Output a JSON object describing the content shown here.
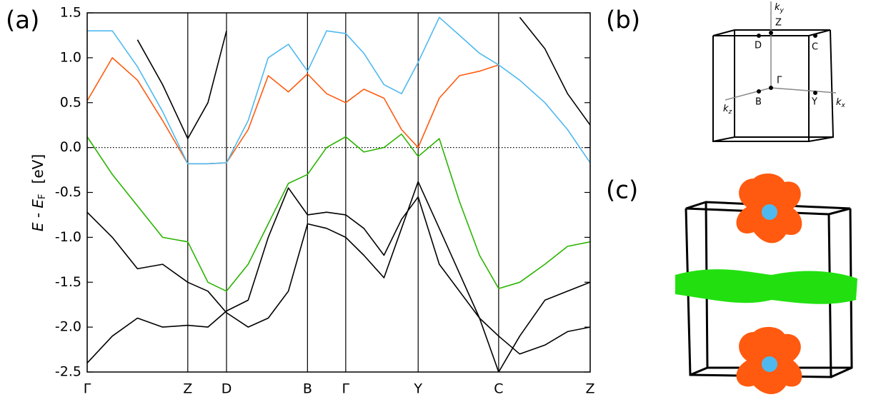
{
  "chart_data": {
    "type": "line",
    "x": [
      0,
      0.05,
      0.1,
      0.15,
      0.2,
      0.24,
      0.277,
      0.32,
      0.36,
      0.4,
      0.438,
      0.476,
      0.514,
      0.55,
      0.59,
      0.625,
      0.658,
      0.7,
      0.74,
      0.78,
      0.818,
      0.86,
      0.91,
      0.955,
      1.0
    ],
    "xlim": [
      0,
      1
    ],
    "xticks": [
      {
        "value": 0,
        "label": "Γ"
      },
      {
        "value": 0.2,
        "label": "Z"
      },
      {
        "value": 0.277,
        "label": "D"
      },
      {
        "value": 0.438,
        "label": "B"
      },
      {
        "value": 0.514,
        "label": "Γ"
      },
      {
        "value": 0.658,
        "label": "Y"
      },
      {
        "value": 0.818,
        "label": "C"
      },
      {
        "value": 1.0,
        "label": "Z"
      }
    ],
    "ylim": [
      -2.5,
      1.5
    ],
    "yticks": [
      1.5,
      {
        "value": 1,
        "label": "1.0"
      },
      0.5,
      {
        "value": 0,
        "label": "0.0"
      },
      -0.5,
      {
        "value": -1,
        "label": "-1.0"
      },
      -1.5,
      {
        "value": -2,
        "label": "-2.0"
      },
      -2.5
    ],
    "ylabel_parts": [
      "E",
      " - ",
      "E",
      "F",
      "[eV]"
    ],
    "hline": 0,
    "series": [
      {
        "color": "#000000",
        "values": [
          -0.72,
          -1.0,
          -1.35,
          -1.3,
          -1.5,
          -1.6,
          -1.84,
          -2.0,
          -1.9,
          -1.6,
          -0.85,
          -0.9,
          -1.0,
          -1.2,
          -1.45,
          -0.9,
          -0.38,
          -0.9,
          -1.4,
          -1.9,
          -2.5,
          -2.1,
          -1.7,
          -1.6,
          -1.5
        ]
      },
      {
        "color": "#000000",
        "values": [
          -2.4,
          -2.1,
          -1.9,
          -2.0,
          -1.98,
          -2.0,
          -1.82,
          -1.7,
          -1.0,
          -0.45,
          -0.75,
          -0.72,
          -0.75,
          -0.9,
          -1.2,
          -0.8,
          -0.55,
          -1.3,
          -1.6,
          -1.9,
          -2.1,
          -2.3,
          -2.2,
          -2.05,
          -2.0
        ]
      },
      {
        "color": "#000000",
        "values": [
          null,
          null,
          1.2,
          0.7,
          0.1,
          0.5,
          1.3,
          null,
          null,
          null,
          null,
          null,
          null,
          null,
          null,
          null,
          null,
          null,
          null,
          null,
          null,
          null,
          null,
          null,
          null
        ]
      },
      {
        "color": "#000000",
        "values": [
          null,
          null,
          null,
          null,
          null,
          null,
          null,
          null,
          null,
          null,
          null,
          null,
          null,
          null,
          null,
          null,
          null,
          null,
          null,
          null,
          null,
          1.45,
          1.1,
          0.6,
          0.25
        ]
      },
      {
        "color": "#2ab400",
        "values": [
          0.12,
          -0.3,
          -0.65,
          -1.0,
          -1.05,
          -1.5,
          -1.6,
          -1.3,
          -0.85,
          -0.4,
          -0.3,
          0.0,
          0.12,
          -0.05,
          0.0,
          0.15,
          -0.1,
          0.1,
          -0.6,
          -1.2,
          -1.57,
          -1.5,
          -1.3,
          -1.1,
          -1.05
        ]
      },
      {
        "color": "#ff5a0f",
        "values": [
          0.52,
          1.0,
          0.75,
          0.3,
          -0.18,
          -0.18,
          -0.17,
          0.2,
          0.8,
          0.62,
          0.82,
          0.6,
          0.5,
          0.65,
          0.55,
          0.2,
          0.0,
          0.55,
          0.8,
          0.85,
          0.92,
          null,
          null,
          null,
          null
        ]
      },
      {
        "color": "#4fb9ef",
        "values": [
          1.3,
          1.3,
          0.9,
          0.4,
          -0.18,
          -0.18,
          -0.17,
          0.3,
          1.0,
          1.15,
          0.85,
          1.3,
          1.27,
          1.05,
          0.7,
          0.6,
          0.95,
          1.45,
          1.25,
          1.05,
          0.92,
          0.75,
          0.5,
          0.2,
          -0.17
        ]
      }
    ]
  },
  "figure": {
    "panel_labels": [
      "(a)",
      "(b)",
      "(c)"
    ],
    "bz_points": [
      "Z",
      "D",
      "C",
      "Γ",
      "B",
      "Y"
    ],
    "k_axes": [
      [
        "k",
        "y"
      ],
      [
        "k",
        "z"
      ],
      [
        "k",
        "x"
      ]
    ]
  }
}
